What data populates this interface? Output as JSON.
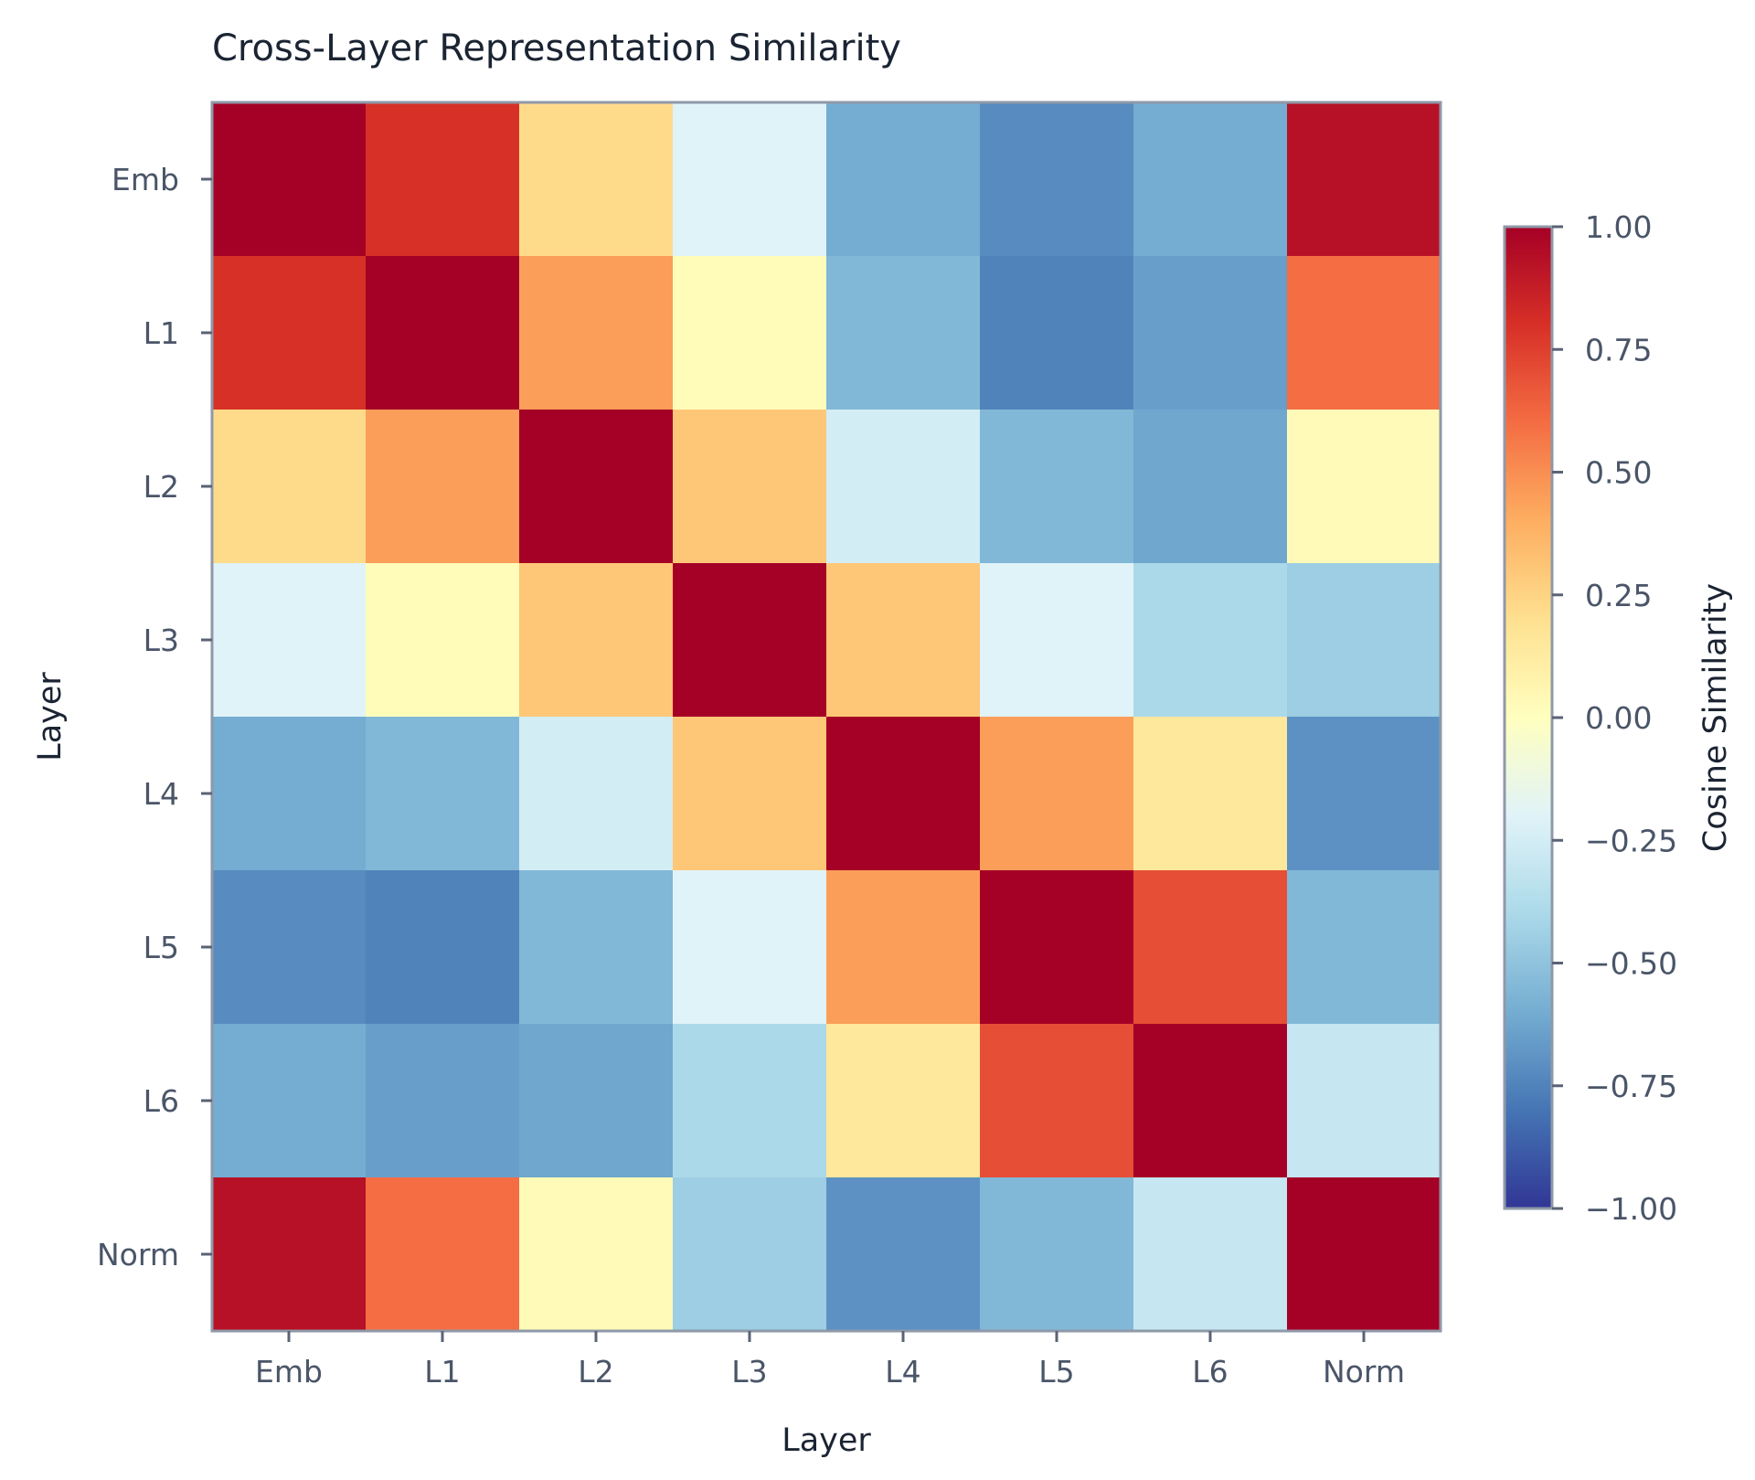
{
  "chart_data": {
    "type": "heatmap",
    "title": "Cross-Layer Representation Similarity",
    "xlabel": "Layer",
    "ylabel": "Layer",
    "x_categories": [
      "Emb",
      "L1",
      "L2",
      "L3",
      "L4",
      "L5",
      "L6",
      "Norm"
    ],
    "y_categories": [
      "Emb",
      "L1",
      "L2",
      "L3",
      "L4",
      "L5",
      "L6",
      "Norm"
    ],
    "values": [
      [
        1.0,
        0.8,
        0.22,
        -0.2,
        -0.6,
        -0.72,
        -0.6,
        0.93
      ],
      [
        0.8,
        1.0,
        0.45,
        0.02,
        -0.55,
        -0.75,
        -0.65,
        0.6
      ],
      [
        0.22,
        0.45,
        1.0,
        0.3,
        -0.25,
        -0.55,
        -0.62,
        0.03
      ],
      [
        -0.2,
        0.02,
        0.3,
        1.0,
        0.3,
        -0.2,
        -0.4,
        -0.45
      ],
      [
        -0.6,
        -0.55,
        -0.25,
        0.3,
        1.0,
        0.45,
        0.15,
        -0.7
      ],
      [
        -0.72,
        -0.75,
        -0.55,
        -0.2,
        0.45,
        1.0,
        0.7,
        -0.55
      ],
      [
        -0.6,
        -0.65,
        -0.62,
        -0.4,
        0.15,
        0.7,
        1.0,
        -0.3
      ],
      [
        0.93,
        0.6,
        0.03,
        -0.45,
        -0.7,
        -0.55,
        -0.3,
        1.0
      ]
    ],
    "colorbar": {
      "label": "Cosine Similarity",
      "range": [
        -1,
        1
      ],
      "ticks": [
        1.0,
        0.75,
        0.5,
        0.25,
        0.0,
        -0.25,
        -0.5,
        -0.75,
        -1.0
      ],
      "tick_labels": [
        "1.00",
        "0.75",
        "0.50",
        "0.25",
        "0.00",
        "−0.25",
        "−0.50",
        "−0.75",
        "−1.00"
      ],
      "colormap": "RdYlBu_r"
    },
    "grid": false
  }
}
